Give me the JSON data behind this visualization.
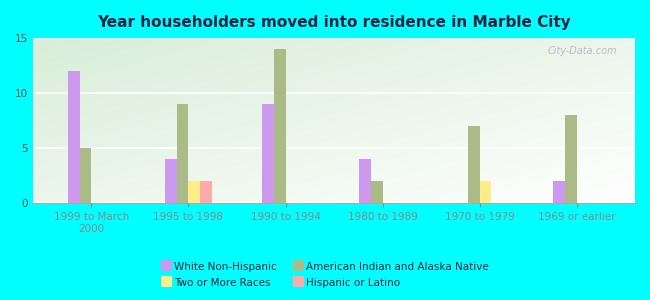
{
  "title": "Year householders moved into residence in Marble City",
  "background_color": "#00FFFF",
  "categories": [
    "1999 to March\n2000",
    "1995 to 1998",
    "1990 to 1994",
    "1980 to 1989",
    "1970 to 1979",
    "1969 or earlier"
  ],
  "series": [
    {
      "name": "White Non-Hispanic",
      "color": "#cc99ee",
      "values": [
        12,
        4,
        9,
        4,
        0,
        2
      ]
    },
    {
      "name": "American Indian and Alaska Native",
      "color": "#aabb88",
      "values": [
        5,
        9,
        14,
        2,
        7,
        8
      ]
    },
    {
      "name": "Two or More Races",
      "color": "#ffee88",
      "values": [
        0,
        2,
        0,
        0,
        2,
        0
      ]
    },
    {
      "name": "Hispanic or Latino",
      "color": "#ffaaaa",
      "values": [
        0,
        2,
        0,
        0,
        0,
        0
      ]
    }
  ],
  "ylim": [
    0,
    15
  ],
  "yticks": [
    0,
    5,
    10,
    15
  ],
  "bar_width": 0.12,
  "watermark": "City-Data.com",
  "title_fontsize": 11,
  "tick_fontsize": 7.5,
  "legend_fontsize": 7.5
}
